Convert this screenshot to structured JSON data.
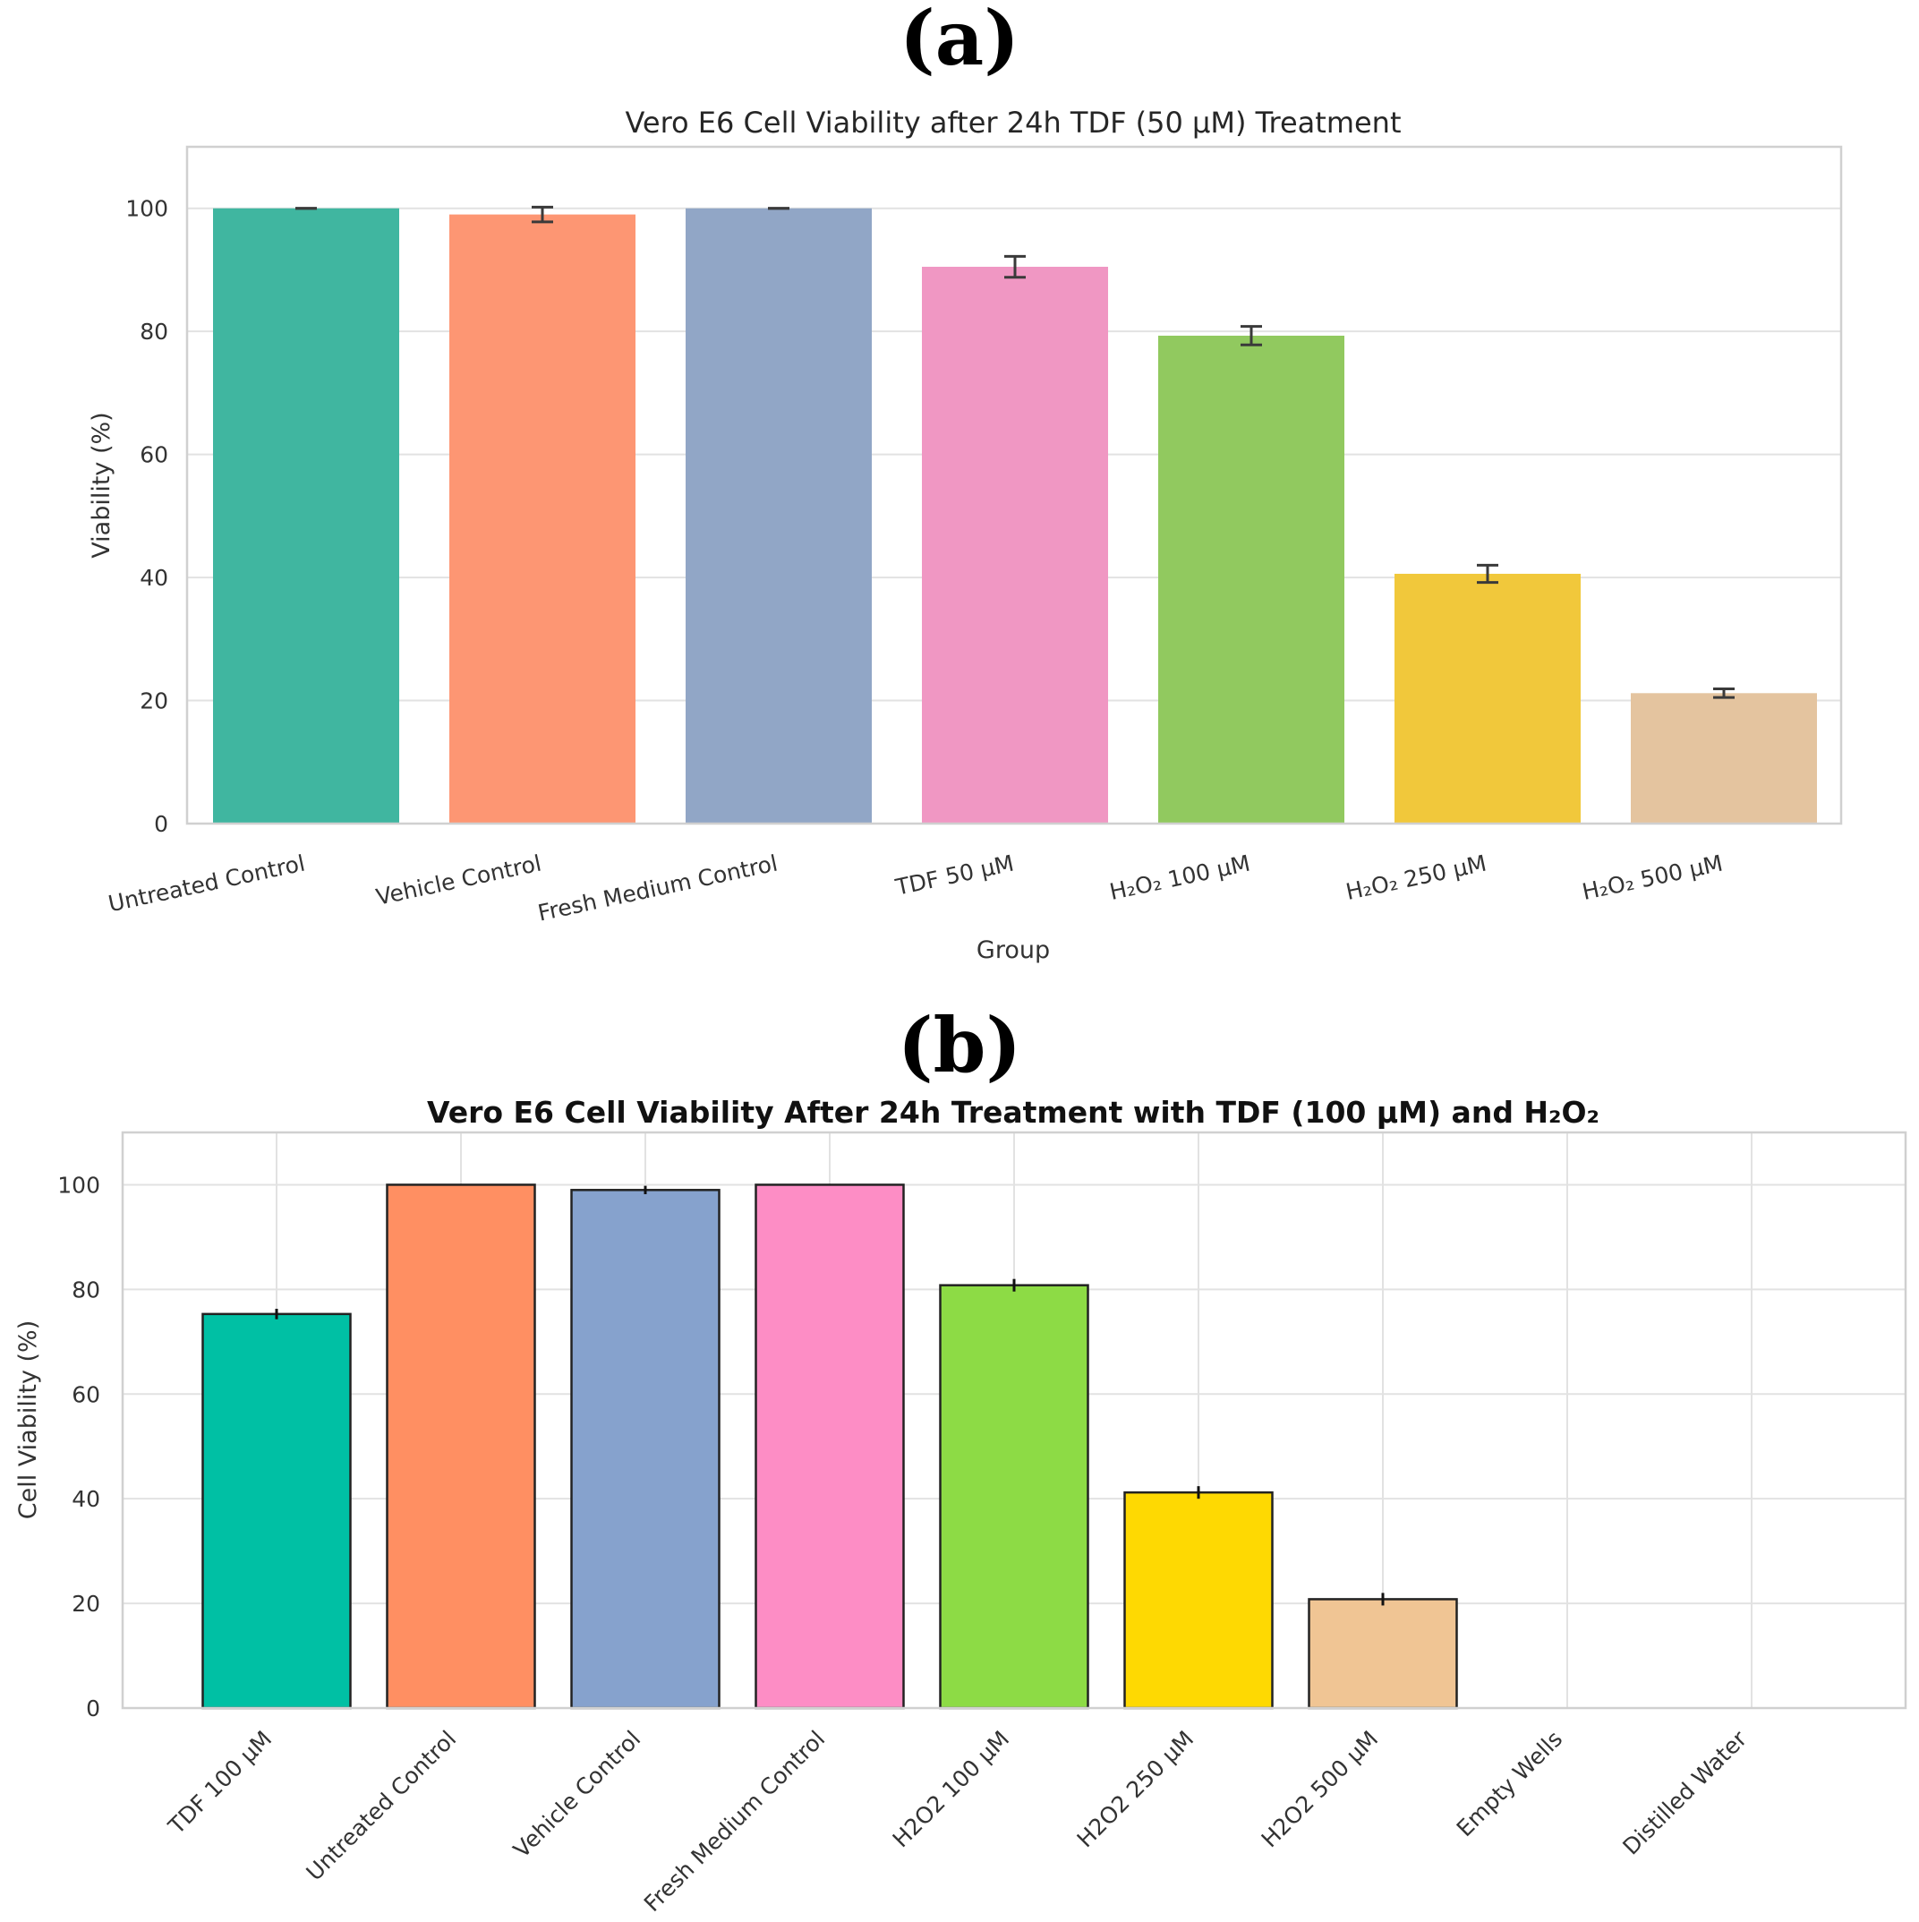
{
  "panel_labels": [
    "(a)",
    "(b)"
  ],
  "chart_data": [
    {
      "type": "bar",
      "title": "Vero E6 Cell Viability after 24h TDF (50 µM) Treatment",
      "xlabel": "Group",
      "ylabel": "Viability (%)",
      "ylim": [
        0,
        110
      ],
      "yticks": [
        0,
        20,
        40,
        60,
        80,
        100
      ],
      "grid": "horizontal",
      "categories": [
        "Untreated Control",
        "Vehicle Control",
        "Fresh Medium Control",
        "TDF 50 µM",
        "H₂O₂ 100 µM",
        "H₂O₂ 250 µM",
        "H₂O₂ 500 µM"
      ],
      "values": [
        100,
        99,
        100,
        90.5,
        79.3,
        40.6,
        21.2
      ],
      "errors": [
        0,
        1.2,
        0,
        1.7,
        1.5,
        1.4,
        0.7
      ],
      "colors": [
        "#40b6a0",
        "#fd9673",
        "#91a6c6",
        "#f097c3",
        "#91c95f",
        "#f1c83b",
        "#e4c49f"
      ],
      "edge_color": "none"
    },
    {
      "type": "bar",
      "title": "Vero E6 Cell Viability After 24h Treatment with TDF (100 µM) and H₂O₂",
      "xlabel": "",
      "ylabel": "Cell Viability (%)",
      "ylim": [
        0,
        110
      ],
      "yticks": [
        0,
        20,
        40,
        60,
        80,
        100
      ],
      "grid": "both",
      "categories": [
        "TDF 100 µM",
        "Untreated Control",
        "Vehicle Control",
        "Fresh Medium Control",
        "H2O2 100 µM",
        "H2O2 250 µM",
        "H2O2 500 µM",
        "Empty Wells",
        "Distilled Water"
      ],
      "values": [
        75.3,
        100,
        99,
        100,
        80.8,
        41.2,
        20.8,
        0,
        0
      ],
      "errors": [
        1.0,
        0,
        0.8,
        0,
        1.2,
        1.2,
        1.2,
        0,
        0
      ],
      "colors": [
        "#00c0a4",
        "#ff8f62",
        "#86a2cd",
        "#fd8dc5",
        "#8ddb45",
        "#fed902",
        "#f0c594",
        "#ffffff",
        "#ffffff"
      ],
      "edge_color": "#222222"
    }
  ]
}
